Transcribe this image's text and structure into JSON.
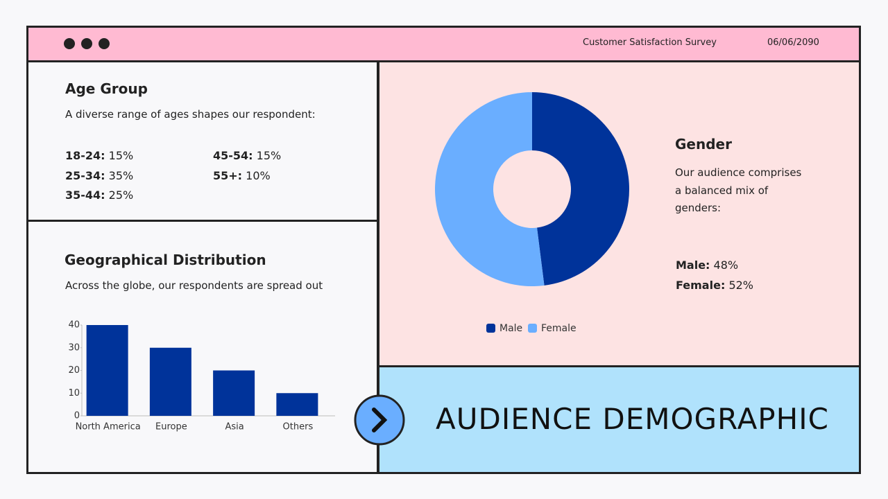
{
  "header": {
    "title": "Customer Satisfaction Survey",
    "date": "06/06/2090"
  },
  "age_group": {
    "title": "Age Group",
    "description": "A diverse range of ages shapes our respondent:",
    "items": [
      {
        "label": "18-24:",
        "value": "15%"
      },
      {
        "label": "25-34:",
        "value": "35%"
      },
      {
        "label": "35-44:",
        "value": "25%"
      },
      {
        "label": "45-54:",
        "value": "15%"
      },
      {
        "label": "55+:",
        "value": "10%"
      }
    ]
  },
  "gender": {
    "items": [
      {
        "label": "Male:",
        "value": "48%"
      },
      {
        "label": "Female:",
        "value": "52%"
      }
    ]
  },
  "banner": {
    "title": "AUDIENCE DEMOGRAPHIC"
  },
  "chart_data": [
    {
      "type": "bar",
      "title": "Geographical Distribution",
      "subtitle": "Across the globe, our respondents are spread out",
      "categories": [
        "North America",
        "Europe",
        "Asia",
        "Others"
      ],
      "values": [
        40,
        30,
        20,
        10
      ],
      "color": "#00339a",
      "ylim": [
        0,
        40
      ],
      "yticks": [
        0,
        10,
        20,
        30,
        40
      ]
    },
    {
      "type": "pie",
      "title": "Gender",
      "subtitle": "Our audience comprises a balanced mix of genders:",
      "categories": [
        "Male",
        "Female"
      ],
      "values": [
        48,
        52
      ],
      "colors": [
        "#00339a",
        "#6aaeff"
      ]
    }
  ]
}
